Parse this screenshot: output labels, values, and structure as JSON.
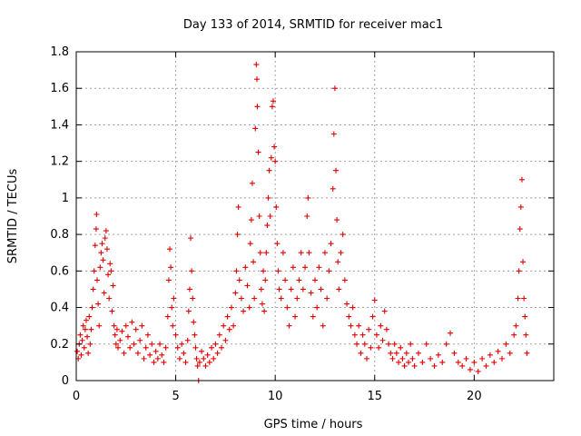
{
  "chart_data": {
    "type": "scatter",
    "title": "Day 133 of 2014, SRMTID for receiver mac1",
    "xlabel": "GPS time / hours",
    "ylabel": "SRMTID / TECUs",
    "xlim": [
      0,
      24
    ],
    "ylim": [
      0,
      1.8
    ],
    "grid": true,
    "legend": "none",
    "marker": "+",
    "color": "#e00000",
    "x_ticks": [
      0,
      5,
      10,
      15,
      20
    ],
    "y_ticks": [
      0,
      0.2,
      0.4,
      0.6,
      0.8,
      1,
      1.2,
      1.4,
      1.6,
      1.8
    ],
    "x_tick_labels": [
      "0",
      "5",
      "10",
      "15",
      "20"
    ],
    "y_tick_labels": [
      "0",
      "0.2",
      "0.4",
      "0.6",
      "0.8",
      "1",
      "1.2",
      "1.4",
      "1.6",
      "1.8"
    ],
    "series": [
      {
        "name": "mac1",
        "points": [
          [
            0.05,
            0.16
          ],
          [
            0.1,
            0.12
          ],
          [
            0.15,
            0.2
          ],
          [
            0.2,
            0.25
          ],
          [
            0.25,
            0.14
          ],
          [
            0.3,
            0.22
          ],
          [
            0.35,
            0.3
          ],
          [
            0.4,
            0.18
          ],
          [
            0.45,
            0.28
          ],
          [
            0.5,
            0.33
          ],
          [
            0.55,
            0.24
          ],
          [
            0.6,
            0.15
          ],
          [
            0.65,
            0.35
          ],
          [
            0.7,
            0.2
          ],
          [
            0.75,
            0.28
          ],
          [
            0.8,
            0.4
          ],
          [
            0.85,
            0.5
          ],
          [
            0.9,
            0.6
          ],
          [
            0.95,
            0.74
          ],
          [
            1.0,
            0.83
          ],
          [
            1.02,
            0.91
          ],
          [
            1.05,
            0.55
          ],
          [
            1.1,
            0.42
          ],
          [
            1.15,
            0.3
          ],
          [
            1.2,
            0.62
          ],
          [
            1.25,
            0.7
          ],
          [
            1.3,
            0.75
          ],
          [
            1.35,
            0.66
          ],
          [
            1.4,
            0.48
          ],
          [
            1.45,
            0.78
          ],
          [
            1.5,
            0.82
          ],
          [
            1.55,
            0.72
          ],
          [
            1.6,
            0.58
          ],
          [
            1.65,
            0.45
          ],
          [
            1.7,
            0.64
          ],
          [
            1.75,
            0.6
          ],
          [
            1.8,
            0.38
          ],
          [
            1.85,
            0.52
          ],
          [
            1.9,
            0.3
          ],
          [
            1.95,
            0.25
          ],
          [
            2.0,
            0.2
          ],
          [
            2.05,
            0.28
          ],
          [
            2.1,
            0.18
          ],
          [
            2.2,
            0.22
          ],
          [
            2.3,
            0.27
          ],
          [
            2.4,
            0.15
          ],
          [
            2.5,
            0.3
          ],
          [
            2.6,
            0.24
          ],
          [
            2.7,
            0.18
          ],
          [
            2.8,
            0.32
          ],
          [
            2.9,
            0.2
          ],
          [
            3.0,
            0.28
          ],
          [
            3.1,
            0.15
          ],
          [
            3.2,
            0.22
          ],
          [
            3.3,
            0.3
          ],
          [
            3.4,
            0.12
          ],
          [
            3.5,
            0.18
          ],
          [
            3.6,
            0.25
          ],
          [
            3.7,
            0.14
          ],
          [
            3.8,
            0.2
          ],
          [
            3.9,
            0.1
          ],
          [
            4.0,
            0.16
          ],
          [
            4.1,
            0.12
          ],
          [
            4.2,
            0.2
          ],
          [
            4.3,
            0.14
          ],
          [
            4.4,
            0.1
          ],
          [
            4.5,
            0.18
          ],
          [
            4.6,
            0.35
          ],
          [
            4.65,
            0.55
          ],
          [
            4.7,
            0.72
          ],
          [
            4.75,
            0.62
          ],
          [
            4.8,
            0.4
          ],
          [
            4.85,
            0.3
          ],
          [
            4.9,
            0.45
          ],
          [
            5.0,
            0.25
          ],
          [
            5.1,
            0.18
          ],
          [
            5.2,
            0.12
          ],
          [
            5.3,
            0.2
          ],
          [
            5.4,
            0.15
          ],
          [
            5.5,
            0.1
          ],
          [
            5.6,
            0.22
          ],
          [
            5.65,
            0.38
          ],
          [
            5.7,
            0.5
          ],
          [
            5.75,
            0.78
          ],
          [
            5.8,
            0.6
          ],
          [
            5.85,
            0.45
          ],
          [
            5.9,
            0.32
          ],
          [
            5.95,
            0.25
          ],
          [
            6.0,
            0.18
          ],
          [
            6.05,
            0.12
          ],
          [
            6.1,
            0.08
          ],
          [
            6.15,
            0.0
          ],
          [
            6.2,
            0.1
          ],
          [
            6.3,
            0.16
          ],
          [
            6.4,
            0.12
          ],
          [
            6.5,
            0.08
          ],
          [
            6.6,
            0.14
          ],
          [
            6.7,
            0.1
          ],
          [
            6.8,
            0.18
          ],
          [
            6.9,
            0.12
          ],
          [
            7.0,
            0.2
          ],
          [
            7.1,
            0.15
          ],
          [
            7.2,
            0.25
          ],
          [
            7.3,
            0.18
          ],
          [
            7.4,
            0.3
          ],
          [
            7.5,
            0.22
          ],
          [
            7.6,
            0.35
          ],
          [
            7.7,
            0.28
          ],
          [
            7.8,
            0.4
          ],
          [
            7.9,
            0.3
          ],
          [
            8.0,
            0.48
          ],
          [
            8.05,
            0.6
          ],
          [
            8.1,
            0.8
          ],
          [
            8.15,
            0.95
          ],
          [
            8.2,
            0.55
          ],
          [
            8.3,
            0.45
          ],
          [
            8.4,
            0.38
          ],
          [
            8.5,
            0.62
          ],
          [
            8.6,
            0.52
          ],
          [
            8.7,
            0.4
          ],
          [
            8.75,
            0.75
          ],
          [
            8.8,
            0.88
          ],
          [
            8.85,
            1.08
          ],
          [
            8.9,
            0.65
          ],
          [
            8.95,
            0.45
          ],
          [
            9.0,
            1.38
          ],
          [
            9.05,
            1.73
          ],
          [
            9.08,
            1.65
          ],
          [
            9.1,
            1.5
          ],
          [
            9.15,
            1.25
          ],
          [
            9.2,
            0.9
          ],
          [
            9.25,
            0.7
          ],
          [
            9.3,
            0.5
          ],
          [
            9.35,
            0.42
          ],
          [
            9.4,
            0.6
          ],
          [
            9.45,
            0.38
          ],
          [
            9.5,
            0.55
          ],
          [
            9.55,
            0.7
          ],
          [
            9.6,
            0.85
          ],
          [
            9.65,
            1.0
          ],
          [
            9.7,
            1.15
          ],
          [
            9.75,
            0.9
          ],
          [
            9.8,
            1.22
          ],
          [
            9.85,
            1.5
          ],
          [
            9.9,
            1.53
          ],
          [
            9.95,
            1.28
          ],
          [
            10.0,
            1.2
          ],
          [
            10.05,
            0.95
          ],
          [
            10.1,
            0.75
          ],
          [
            10.15,
            0.6
          ],
          [
            10.2,
            0.5
          ],
          [
            10.3,
            0.45
          ],
          [
            10.4,
            0.7
          ],
          [
            10.5,
            0.55
          ],
          [
            10.6,
            0.4
          ],
          [
            10.7,
            0.3
          ],
          [
            10.8,
            0.5
          ],
          [
            10.9,
            0.62
          ],
          [
            11.0,
            0.35
          ],
          [
            11.1,
            0.45
          ],
          [
            11.2,
            0.55
          ],
          [
            11.3,
            0.7
          ],
          [
            11.4,
            0.5
          ],
          [
            11.5,
            0.62
          ],
          [
            11.6,
            0.9
          ],
          [
            11.65,
            1.0
          ],
          [
            11.7,
            0.7
          ],
          [
            11.8,
            0.48
          ],
          [
            11.9,
            0.35
          ],
          [
            12.0,
            0.55
          ],
          [
            12.1,
            0.4
          ],
          [
            12.2,
            0.62
          ],
          [
            12.3,
            0.5
          ],
          [
            12.4,
            0.3
          ],
          [
            12.5,
            0.7
          ],
          [
            12.6,
            0.45
          ],
          [
            12.7,
            0.6
          ],
          [
            12.8,
            0.75
          ],
          [
            12.9,
            1.05
          ],
          [
            12.95,
            1.35
          ],
          [
            13.0,
            1.6
          ],
          [
            13.05,
            1.15
          ],
          [
            13.1,
            0.88
          ],
          [
            13.15,
            0.65
          ],
          [
            13.2,
            0.5
          ],
          [
            13.3,
            0.7
          ],
          [
            13.4,
            0.8
          ],
          [
            13.5,
            0.55
          ],
          [
            13.6,
            0.42
          ],
          [
            13.7,
            0.35
          ],
          [
            13.8,
            0.3
          ],
          [
            13.9,
            0.4
          ],
          [
            14.0,
            0.25
          ],
          [
            14.1,
            0.2
          ],
          [
            14.2,
            0.3
          ],
          [
            14.3,
            0.15
          ],
          [
            14.4,
            0.25
          ],
          [
            14.5,
            0.2
          ],
          [
            14.6,
            0.12
          ],
          [
            14.7,
            0.28
          ],
          [
            14.8,
            0.18
          ],
          [
            14.9,
            0.35
          ],
          [
            15.0,
            0.44
          ],
          [
            15.1,
            0.25
          ],
          [
            15.2,
            0.18
          ],
          [
            15.3,
            0.3
          ],
          [
            15.4,
            0.22
          ],
          [
            15.5,
            0.38
          ],
          [
            15.6,
            0.28
          ],
          [
            15.7,
            0.2
          ],
          [
            15.8,
            0.15
          ],
          [
            15.9,
            0.12
          ],
          [
            16.0,
            0.2
          ],
          [
            16.1,
            0.15
          ],
          [
            16.2,
            0.1
          ],
          [
            16.3,
            0.18
          ],
          [
            16.4,
            0.12
          ],
          [
            16.5,
            0.08
          ],
          [
            16.6,
            0.15
          ],
          [
            16.7,
            0.1
          ],
          [
            16.8,
            0.2
          ],
          [
            16.9,
            0.12
          ],
          [
            17.0,
            0.08
          ],
          [
            17.2,
            0.15
          ],
          [
            17.4,
            0.1
          ],
          [
            17.6,
            0.2
          ],
          [
            17.8,
            0.12
          ],
          [
            18.0,
            0.08
          ],
          [
            18.2,
            0.14
          ],
          [
            18.4,
            0.1
          ],
          [
            18.6,
            0.2
          ],
          [
            18.8,
            0.26
          ],
          [
            19.0,
            0.15
          ],
          [
            19.2,
            0.1
          ],
          [
            19.4,
            0.08
          ],
          [
            19.6,
            0.12
          ],
          [
            19.8,
            0.06
          ],
          [
            20.0,
            0.1
          ],
          [
            20.2,
            0.05
          ],
          [
            20.4,
            0.12
          ],
          [
            20.6,
            0.08
          ],
          [
            20.8,
            0.14
          ],
          [
            21.0,
            0.1
          ],
          [
            21.2,
            0.16
          ],
          [
            21.4,
            0.12
          ],
          [
            21.6,
            0.2
          ],
          [
            21.8,
            0.15
          ],
          [
            22.0,
            0.25
          ],
          [
            22.1,
            0.3
          ],
          [
            22.2,
            0.45
          ],
          [
            22.25,
            0.6
          ],
          [
            22.3,
            0.83
          ],
          [
            22.35,
            0.95
          ],
          [
            22.4,
            1.1
          ],
          [
            22.45,
            0.65
          ],
          [
            22.5,
            0.45
          ],
          [
            22.55,
            0.35
          ],
          [
            22.6,
            0.25
          ],
          [
            22.65,
            0.15
          ]
        ]
      }
    ]
  }
}
